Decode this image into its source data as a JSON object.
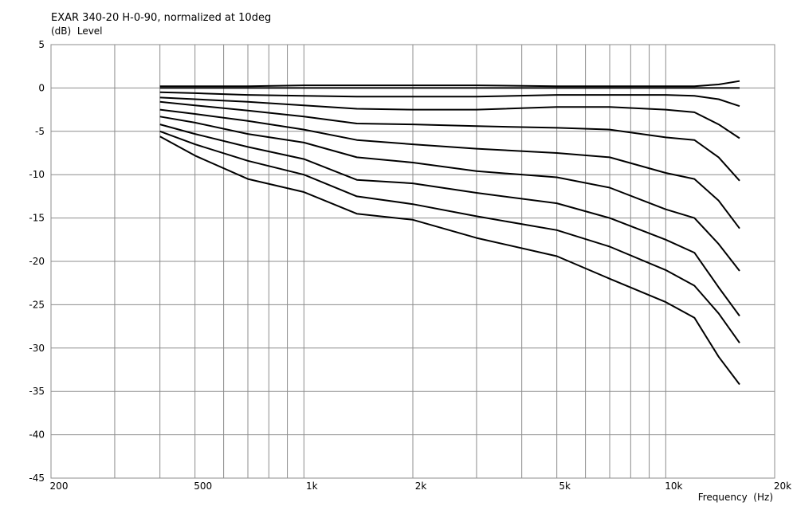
{
  "chart_data": {
    "type": "line",
    "title": "EXAR 340-20 H-0-90, normalized at 10deg",
    "y_label": "(dB)  Level",
    "x_label": "Frequency  (Hz)",
    "log_x": true,
    "grid": true,
    "xlim": [
      200,
      20000
    ],
    "ylim": [
      -45,
      5
    ],
    "xticks": [
      200,
      500,
      {
        "value": 1000,
        "label": "1k"
      },
      {
        "value": 2000,
        "label": "2k"
      },
      {
        "value": 5000,
        "label": "5k"
      },
      {
        "value": 10000,
        "label": "10k"
      },
      {
        "value": 20000,
        "label": "20k"
      }
    ],
    "xminor": [
      300,
      400,
      600,
      700,
      800,
      900,
      3000,
      4000,
      6000,
      7000,
      8000,
      9000
    ],
    "yticks": [
      5,
      0,
      -5,
      -10,
      -15,
      -20,
      -25,
      -30,
      -35,
      -40,
      -45
    ],
    "x": [
      400,
      500,
      700,
      1000,
      1400,
      2000,
      3000,
      5000,
      7000,
      10000,
      12000,
      14000,
      16000
    ],
    "series": [
      {
        "color": "#000000",
        "values": [
          0.2,
          0.2,
          0.2,
          0.3,
          0.3,
          0.3,
          0.3,
          0.2,
          0.2,
          0.2,
          0.2,
          0.4,
          0.8
        ]
      },
      {
        "color": "#000000",
        "values": [
          0,
          0,
          0,
          0,
          0,
          0,
          0,
          0,
          0,
          0,
          0,
          0,
          0
        ]
      },
      {
        "color": "#000000",
        "values": [
          -0.5,
          -0.6,
          -0.8,
          -0.9,
          -1.0,
          -1.0,
          -1.0,
          -0.8,
          -0.8,
          -0.8,
          -0.9,
          -1.3,
          -2.1
        ]
      },
      {
        "color": "#000000",
        "values": [
          -1.1,
          -1.3,
          -1.6,
          -2.0,
          -2.4,
          -2.5,
          -2.5,
          -2.2,
          -2.2,
          -2.5,
          -2.8,
          -4.2,
          -5.8
        ]
      },
      {
        "color": "#000000",
        "values": [
          -1.6,
          -2.0,
          -2.6,
          -3.3,
          -4.1,
          -4.2,
          -4.4,
          -4.6,
          -4.8,
          -5.7,
          -6.0,
          -8.0,
          -10.7
        ]
      },
      {
        "color": "#000000",
        "values": [
          -2.5,
          -3.0,
          -3.8,
          -4.8,
          -6.0,
          -6.5,
          -7.0,
          -7.5,
          -8.0,
          -9.8,
          -10.5,
          -13.0,
          -16.2
        ]
      },
      {
        "color": "#000000",
        "values": [
          -3.3,
          -4.0,
          -5.3,
          -6.3,
          -8.0,
          -8.6,
          -9.6,
          -10.3,
          -11.5,
          -14.0,
          -15.0,
          -18.0,
          -21.1
        ]
      },
      {
        "color": "#000000",
        "values": [
          -4.2,
          -5.3,
          -6.8,
          -8.2,
          -10.6,
          -11.0,
          -12.1,
          -13.3,
          -15.0,
          -17.5,
          -19.0,
          -23.0,
          -26.3
        ]
      },
      {
        "color": "#000000",
        "values": [
          -5.0,
          -6.5,
          -8.4,
          -10.0,
          -12.5,
          -13.4,
          -14.8,
          -16.4,
          -18.3,
          -21.0,
          -22.8,
          -26.0,
          -29.4
        ]
      },
      {
        "color": "#000000",
        "values": [
          -5.6,
          -7.8,
          -10.5,
          -12.0,
          -14.5,
          -15.2,
          -17.3,
          -19.4,
          -22.0,
          -24.7,
          -26.5,
          -31.0,
          -34.2
        ]
      }
    ]
  }
}
